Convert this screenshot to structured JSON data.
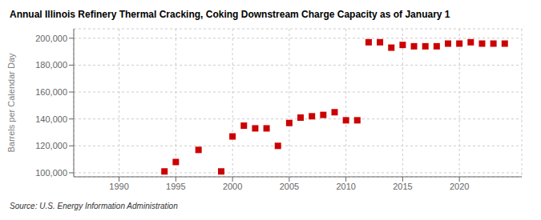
{
  "chart_data": {
    "type": "scatter",
    "title": "Annual Illinois Refinery Thermal Cracking, Coking Downstream Charge Capacity as of January 1",
    "ylabel": "Barrels per Calendar Day",
    "annotations": [
      "Source: U.S. Energy Information Administration"
    ],
    "x": [
      1994,
      1995,
      1997,
      1999,
      2000,
      2001,
      2002,
      2003,
      2004,
      2005,
      2006,
      2007,
      2008,
      2009,
      2010,
      2011,
      2012,
      2013,
      2014,
      2015,
      2016,
      2017,
      2018,
      2019,
      2020,
      2021,
      2022,
      2023,
      2024
    ],
    "values": [
      101000,
      108000,
      117000,
      101000,
      127000,
      135000,
      133000,
      133000,
      120000,
      137000,
      141000,
      142000,
      143000,
      145000,
      139000,
      139000,
      197000,
      197000,
      193000,
      195000,
      194000,
      194000,
      194000,
      196000,
      196000,
      197000,
      196000,
      196000,
      196000
    ],
    "color": "#cc0000",
    "marker": "square",
    "xlim": [
      1986,
      2025.5
    ],
    "ylim": [
      97000,
      207000
    ],
    "xticks": [
      1990,
      1995,
      2000,
      2005,
      2010,
      2015,
      2020
    ],
    "yticks": [
      {
        "value": 100000,
        "label": "100,000"
      },
      {
        "value": 120000,
        "label": "120,000"
      },
      {
        "value": 140000,
        "label": "140,000"
      },
      {
        "value": 160000,
        "label": "160,000"
      },
      {
        "value": 180000,
        "label": "180,000"
      },
      {
        "value": 200000,
        "label": "200,000"
      }
    ],
    "grid": true
  }
}
